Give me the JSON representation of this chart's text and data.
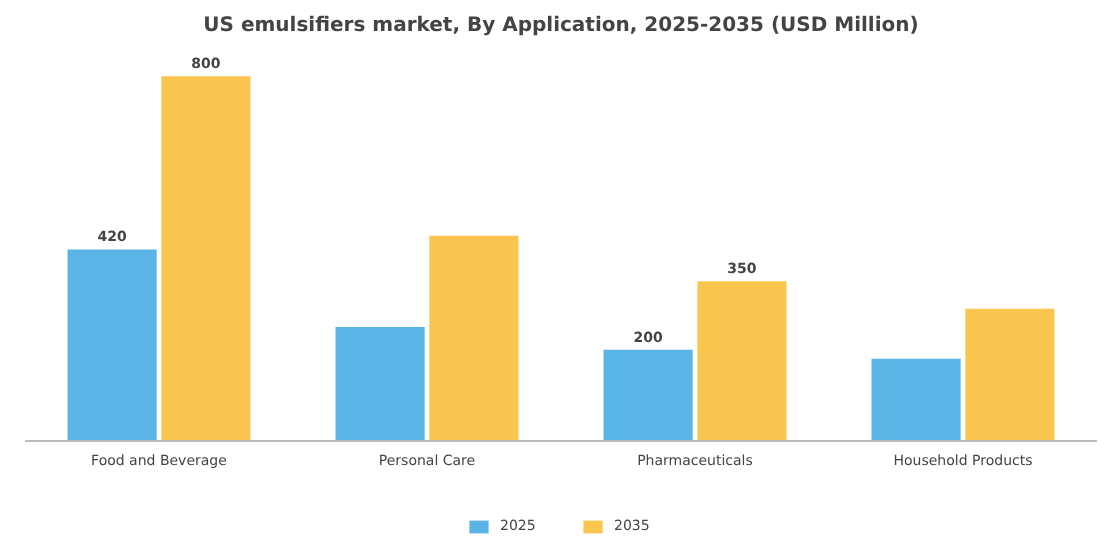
{
  "chart_data": {
    "type": "bar",
    "title": "US emulsifiers market, By Application, 2025-2035 (USD Million)",
    "categories": [
      "Food and Beverage",
      "Personal Care",
      "Pharmaceuticals",
      "Household Products"
    ],
    "series": [
      {
        "name": "2025",
        "color": "#5ab4e5",
        "values": [
          420,
          250,
          200,
          180
        ],
        "value_labels": [
          "420",
          null,
          "200",
          null
        ]
      },
      {
        "name": "2035",
        "color": "#f9c54e",
        "values": [
          800,
          450,
          350,
          290
        ],
        "value_labels": [
          "800",
          null,
          "350",
          null
        ]
      }
    ],
    "legend": "bottom"
  }
}
